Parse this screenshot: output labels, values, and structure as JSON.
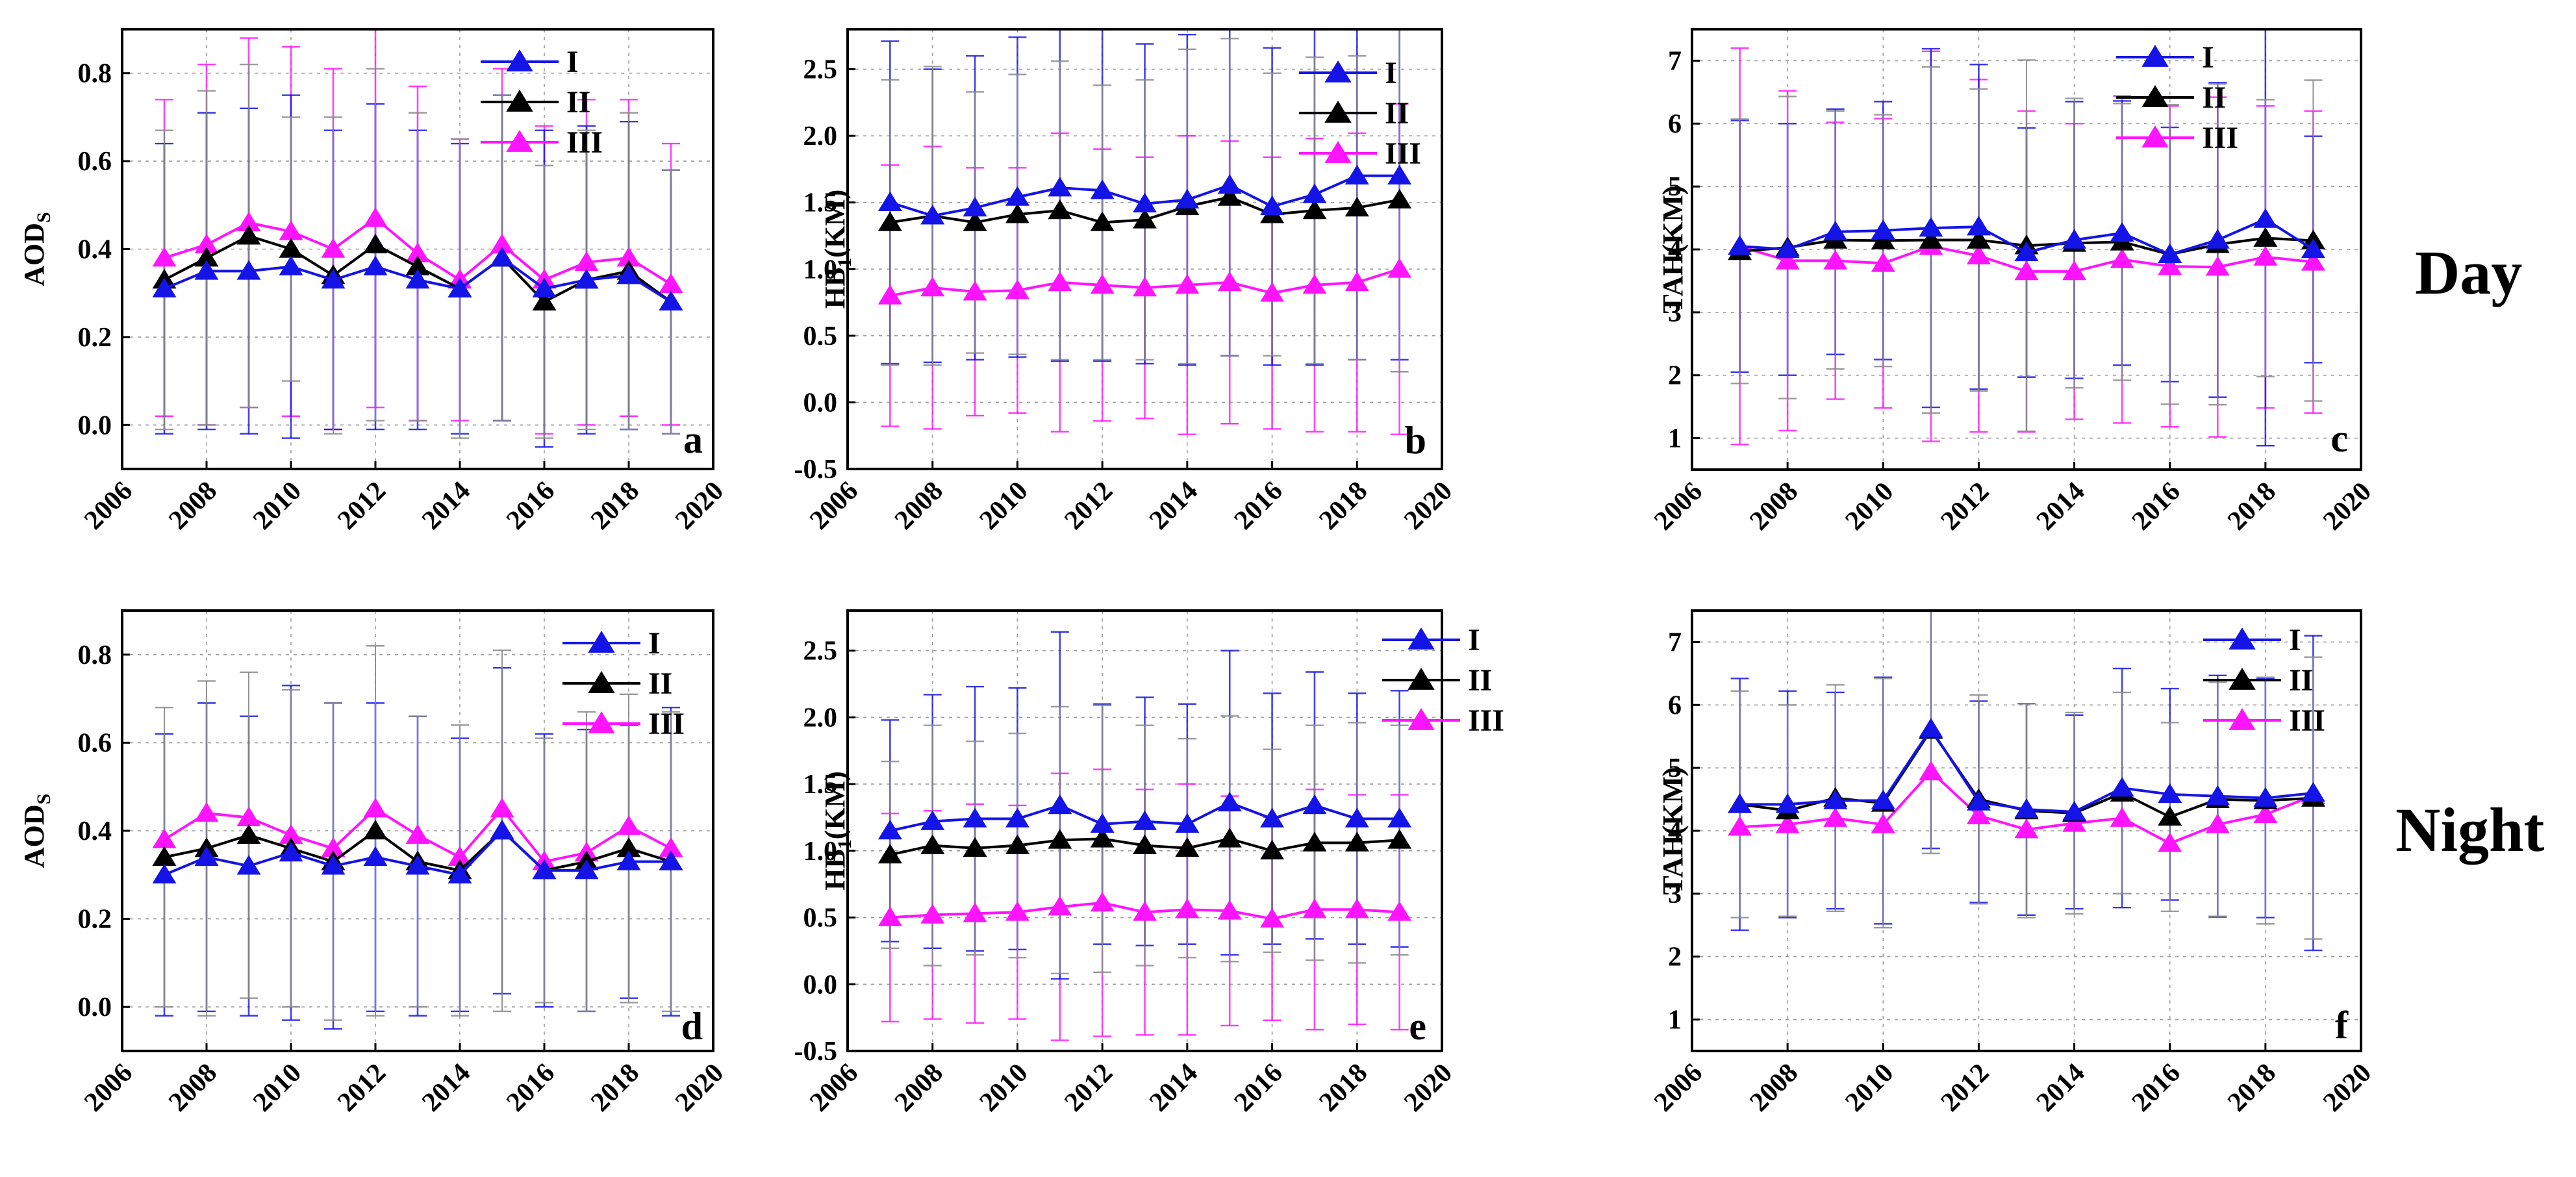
{
  "row_labels": [
    "Day",
    "Night"
  ],
  "colors": {
    "I": "#1414e6",
    "II": "#000000",
    "III": "#ff14ff"
  },
  "chart_data": [
    {
      "type": "line",
      "panel_letter": "a",
      "ylabel": "AOD",
      "ylabel_sub": "S",
      "ylabel_tail": "",
      "xlim": [
        2006,
        2020
      ],
      "ylim": [
        -0.1,
        0.9
      ],
      "xticks": [
        2006,
        2008,
        2010,
        2012,
        2014,
        2016,
        2018,
        2020
      ],
      "yticks": [
        0.0,
        0.2,
        0.4,
        0.6,
        0.8
      ],
      "ytick_labels": [
        "0.0",
        "0.2",
        "0.4",
        "0.6",
        "0.8"
      ],
      "grid": true,
      "legend_position": "top-right",
      "x": [
        2007,
        2008,
        2009,
        2010,
        2011,
        2012,
        2013,
        2014,
        2015,
        2016,
        2017,
        2018,
        2019
      ],
      "series": [
        {
          "name": "I",
          "values": [
            0.31,
            0.35,
            0.35,
            0.36,
            0.33,
            0.36,
            0.33,
            0.31,
            0.38,
            0.31,
            0.33,
            0.34,
            0.28
          ],
          "err": [
            0.33,
            0.36,
            0.37,
            0.39,
            0.34,
            0.37,
            0.34,
            0.33,
            0.37,
            0.36,
            0.35,
            0.35,
            0.3
          ]
        },
        {
          "name": "II",
          "values": [
            0.33,
            0.38,
            0.43,
            0.4,
            0.34,
            0.41,
            0.36,
            0.31,
            0.38,
            0.28,
            0.33,
            0.35,
            0.28
          ],
          "err": [
            0.34,
            0.38,
            0.39,
            0.3,
            0.36,
            0.4,
            0.35,
            0.34,
            0.37,
            0.31,
            0.34,
            0.36,
            0.3
          ]
        },
        {
          "name": "III",
          "values": [
            0.38,
            0.41,
            0.46,
            0.44,
            0.4,
            0.47,
            0.39,
            0.33,
            0.41,
            0.33,
            0.37,
            0.38,
            0.32
          ],
          "err": [
            0.36,
            0.41,
            0.42,
            0.42,
            0.41,
            0.43,
            0.38,
            0.32,
            0.4,
            0.35,
            0.37,
            0.36,
            0.32
          ]
        }
      ]
    },
    {
      "type": "line",
      "panel_letter": "b",
      "ylabel": "HB",
      "ylabel_sub": "1",
      "ylabel_tail": "(KM)",
      "xlim": [
        2006,
        2020
      ],
      "ylim": [
        -0.5,
        2.8
      ],
      "xticks": [
        2006,
        2008,
        2010,
        2012,
        2014,
        2016,
        2018,
        2020
      ],
      "yticks": [
        -0.5,
        0.0,
        0.5,
        1.0,
        1.5,
        2.0,
        2.5
      ],
      "ytick_labels": [
        "-0.5",
        "0.0",
        "0.5",
        "1.0",
        "1.5",
        "2.0",
        "2.5"
      ],
      "grid": true,
      "legend_position": "top-right",
      "x": [
        2007,
        2008,
        2009,
        2010,
        2011,
        2012,
        2013,
        2014,
        2015,
        2016,
        2017,
        2018,
        2019
      ],
      "series": [
        {
          "name": "I",
          "values": [
            1.5,
            1.4,
            1.46,
            1.54,
            1.61,
            1.59,
            1.49,
            1.52,
            1.63,
            1.47,
            1.56,
            1.7,
            1.7
          ],
          "err": [
            1.21,
            1.1,
            1.14,
            1.2,
            1.3,
            1.28,
            1.2,
            1.24,
            1.28,
            1.19,
            1.28,
            1.38,
            1.38
          ]
        },
        {
          "name": "II",
          "values": [
            1.35,
            1.4,
            1.35,
            1.41,
            1.44,
            1.35,
            1.37,
            1.47,
            1.54,
            1.41,
            1.44,
            1.46,
            1.52
          ],
          "err": [
            1.07,
            1.12,
            0.98,
            1.05,
            1.12,
            1.03,
            1.05,
            1.18,
            1.19,
            1.06,
            1.15,
            1.14,
            1.29
          ]
        },
        {
          "name": "III",
          "values": [
            0.8,
            0.86,
            0.83,
            0.84,
            0.9,
            0.88,
            0.86,
            0.88,
            0.9,
            0.82,
            0.88,
            0.9,
            1.0
          ],
          "err": [
            0.98,
            1.06,
            0.93,
            0.92,
            1.12,
            1.02,
            0.98,
            1.12,
            1.06,
            1.02,
            1.1,
            1.12,
            1.24
          ]
        }
      ]
    },
    {
      "type": "line",
      "panel_letter": "c",
      "ylabel": "TAH(KM)",
      "ylabel_sub": "",
      "ylabel_tail": "",
      "xlim": [
        2006,
        2020
      ],
      "ylim": [
        0.5,
        7.5
      ],
      "xticks": [
        2006,
        2008,
        2010,
        2012,
        2014,
        2016,
        2018,
        2020
      ],
      "yticks": [
        1,
        2,
        3,
        4,
        5,
        6,
        7
      ],
      "ytick_labels": [
        "1",
        "2",
        "3",
        "4",
        "5",
        "6",
        "7"
      ],
      "grid": true,
      "legend_position": "top-center",
      "x": [
        2007,
        2008,
        2009,
        2010,
        2011,
        2012,
        2013,
        2014,
        2015,
        2016,
        2017,
        2018,
        2019
      ],
      "series": [
        {
          "name": "I",
          "values": [
            4.05,
            4.0,
            4.28,
            4.3,
            4.34,
            4.36,
            3.95,
            4.15,
            4.26,
            3.92,
            4.15,
            4.48,
            4.0
          ],
          "err": [
            2.0,
            2.0,
            1.95,
            2.05,
            2.85,
            2.58,
            1.98,
            2.2,
            2.1,
            2.02,
            2.5,
            3.6,
            1.8
          ]
        },
        {
          "name": "II",
          "values": [
            3.97,
            4.03,
            4.15,
            4.14,
            4.15,
            4.15,
            4.06,
            4.1,
            4.12,
            3.92,
            4.08,
            4.18,
            4.14
          ],
          "err": [
            2.1,
            2.4,
            2.05,
            2.0,
            2.75,
            2.4,
            2.95,
            2.3,
            2.2,
            2.38,
            2.55,
            2.2,
            2.55
          ]
        },
        {
          "name": "III",
          "values": [
            4.05,
            3.82,
            3.82,
            3.78,
            4.05,
            3.9,
            3.65,
            3.65,
            3.84,
            3.73,
            3.72,
            3.88,
            3.8
          ],
          "err": [
            3.15,
            2.7,
            2.2,
            2.3,
            3.1,
            2.8,
            2.55,
            2.35,
            2.6,
            2.55,
            2.7,
            2.4,
            2.4
          ]
        }
      ]
    },
    {
      "type": "line",
      "panel_letter": "d",
      "ylabel": "AOD",
      "ylabel_sub": "S",
      "ylabel_tail": "",
      "xlim": [
        2006,
        2020
      ],
      "ylim": [
        -0.1,
        0.9
      ],
      "xticks": [
        2006,
        2008,
        2010,
        2012,
        2014,
        2016,
        2018,
        2020
      ],
      "yticks": [
        0.0,
        0.2,
        0.4,
        0.6,
        0.8
      ],
      "ytick_labels": [
        "0.0",
        "0.2",
        "0.4",
        "0.6",
        "0.8"
      ],
      "grid": true,
      "legend_position": "top-right",
      "x": [
        2007,
        2008,
        2009,
        2010,
        2011,
        2012,
        2013,
        2014,
        2015,
        2016,
        2017,
        2018,
        2019
      ],
      "series": [
        {
          "name": "I",
          "values": [
            0.3,
            0.34,
            0.32,
            0.35,
            0.32,
            0.34,
            0.32,
            0.3,
            0.4,
            0.31,
            0.31,
            0.33,
            0.33
          ],
          "err": [
            0.32,
            0.35,
            0.34,
            0.38,
            0.37,
            0.35,
            0.34,
            0.31,
            0.37,
            0.31,
            0.32,
            0.31,
            0.35
          ]
        },
        {
          "name": "II",
          "values": [
            0.34,
            0.36,
            0.39,
            0.36,
            0.33,
            0.4,
            0.33,
            0.31,
            0.4,
            0.31,
            0.33,
            0.36,
            0.33
          ],
          "err": [
            0.34,
            0.38,
            0.37,
            0.36,
            0.36,
            0.42,
            0.33,
            0.33,
            0.41,
            0.3,
            0.34,
            0.35,
            0.34
          ]
        },
        {
          "name": "III",
          "values": [
            0.38,
            0.44,
            0.43,
            0.39,
            0.36,
            0.45,
            0.39,
            0.34,
            0.45,
            0.33,
            0.35,
            0.41,
            0.36
          ]
        }
      ]
    },
    {
      "type": "line",
      "panel_letter": "e",
      "ylabel": "HB",
      "ylabel_sub": "1",
      "ylabel_tail": "(KM)",
      "xlim": [
        2006,
        2020
      ],
      "ylim": [
        -0.5,
        2.8
      ],
      "xticks": [
        2006,
        2008,
        2010,
        2012,
        2014,
        2016,
        2018,
        2020
      ],
      "yticks": [
        -0.5,
        0.0,
        0.5,
        1.0,
        1.5,
        2.0,
        2.5
      ],
      "ytick_labels": [
        "-0.5",
        "0.0",
        "0.5",
        "1.0",
        "1.5",
        "2.0",
        "2.5"
      ],
      "grid": true,
      "legend_position": "top-right",
      "x": [
        2007,
        2008,
        2009,
        2010,
        2011,
        2012,
        2013,
        2014,
        2015,
        2016,
        2017,
        2018,
        2019
      ],
      "series": [
        {
          "name": "I",
          "values": [
            1.15,
            1.22,
            1.24,
            1.24,
            1.34,
            1.2,
            1.22,
            1.2,
            1.36,
            1.24,
            1.34,
            1.24,
            1.24
          ],
          "err": [
            0.83,
            0.95,
            0.99,
            0.98,
            1.3,
            0.9,
            0.93,
            0.9,
            1.14,
            0.94,
            1.0,
            0.94,
            0.96
          ]
        },
        {
          "name": "II",
          "values": [
            0.97,
            1.04,
            1.02,
            1.04,
            1.08,
            1.09,
            1.04,
            1.02,
            1.09,
            1.0,
            1.06,
            1.06,
            1.08
          ],
          "err": [
            0.7,
            0.9,
            0.8,
            0.84,
            1.0,
            1.0,
            0.9,
            0.82,
            0.92,
            0.76,
            0.88,
            0.9,
            0.86
          ]
        },
        {
          "name": "III",
          "values": [
            0.5,
            0.52,
            0.53,
            0.54,
            0.58,
            0.61,
            0.54,
            0.56,
            0.55,
            0.49,
            0.56,
            0.56,
            0.54
          ],
          "err": [
            0.78,
            0.78,
            0.82,
            0.8,
            1.0,
            1.0,
            0.92,
            0.94,
            0.86,
            0.76,
            0.9,
            0.86,
            0.88
          ]
        }
      ]
    },
    {
      "type": "line",
      "panel_letter": "f",
      "ylabel": "TAH(KM)",
      "ylabel_sub": "",
      "ylabel_tail": "",
      "xlim": [
        2006,
        2020
      ],
      "ylim": [
        0.5,
        7.5
      ],
      "xticks": [
        2006,
        2008,
        2010,
        2012,
        2014,
        2016,
        2018,
        2020
      ],
      "yticks": [
        1,
        2,
        3,
        4,
        5,
        6,
        7
      ],
      "ytick_labels": [
        "1",
        "2",
        "3",
        "4",
        "5",
        "6",
        "7"
      ],
      "grid": true,
      "legend_position": "top-right",
      "x": [
        2007,
        2008,
        2009,
        2010,
        2011,
        2012,
        2013,
        2014,
        2015,
        2016,
        2017,
        2018,
        2019
      ],
      "series": [
        {
          "name": "I",
          "values": [
            4.42,
            4.42,
            4.48,
            4.48,
            5.62,
            4.46,
            4.34,
            4.3,
            4.68,
            4.58,
            4.55,
            4.52,
            4.6
          ],
          "err": [
            2.0,
            1.8,
            1.72,
            1.96,
            1.9,
            1.6,
            1.68,
            1.54,
            1.9,
            1.68,
            1.92,
            1.9,
            2.5
          ]
        },
        {
          "name": "II",
          "values": [
            4.42,
            4.32,
            4.52,
            4.44,
            5.6,
            4.5,
            4.32,
            4.28,
            4.6,
            4.22,
            4.5,
            4.48,
            4.52
          ],
          "err": [
            1.8,
            1.68,
            1.8,
            1.98,
            1.96,
            1.66,
            1.7,
            1.6,
            1.6,
            1.5,
            1.86,
            1.96,
            2.24
          ]
        },
        {
          "name": "III",
          "values": [
            4.06,
            4.1,
            4.2,
            4.1,
            4.94,
            4.24,
            4.02,
            4.12,
            4.2,
            3.8,
            4.1,
            4.26,
            4.56
          ]
        }
      ]
    }
  ]
}
